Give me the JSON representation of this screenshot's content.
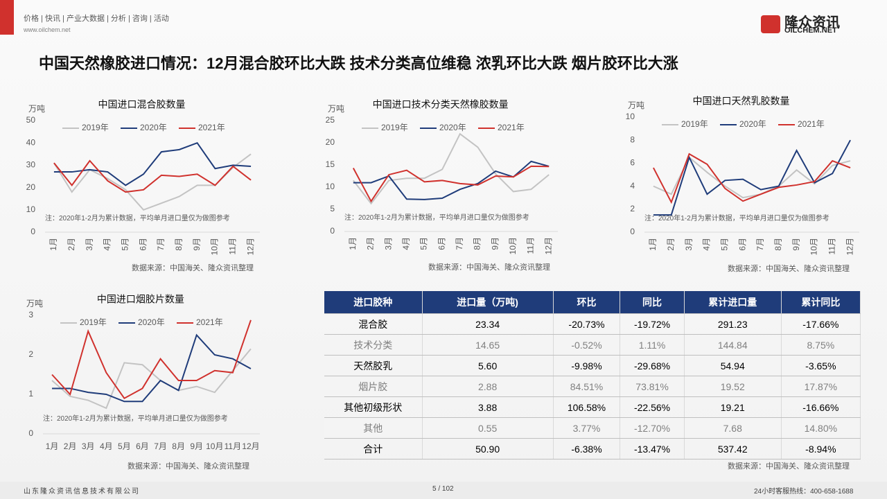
{
  "header": {
    "nav": "价格 | 快讯 | 产业大数据 | 分析 | 咨询 | 活动",
    "url": "www.oilchem.net",
    "logo_cn": "隆众资讯",
    "logo_en": "OILCHEM.NET",
    "title": "中国天然橡胶进口情况：12月混合胶环比大跌 技术分类高位维稳 浓乳环比大跌 烟片胶环比大涨"
  },
  "chart_data": [
    {
      "type": "line",
      "title": "中国进口混合胶数量",
      "y_label": "万吨",
      "categories": [
        "1月",
        "2月",
        "3月",
        "4月",
        "5月",
        "6月",
        "7月",
        "8月",
        "9月",
        "10月",
        "11月",
        "12月"
      ],
      "series": [
        {
          "name": "2019年",
          "color": "#c3c3c3",
          "values": [
            31,
            18,
            28,
            24,
            19,
            10,
            13,
            16,
            21,
            21,
            29,
            35
          ]
        },
        {
          "name": "2020年",
          "color": "#1f3c7a",
          "values": [
            27,
            27,
            28,
            27,
            21,
            26,
            36,
            37,
            40,
            28.5,
            30,
            29.5
          ]
        },
        {
          "name": "2021年",
          "color": "#d0312d",
          "values": [
            31,
            21,
            32,
            23,
            18,
            19,
            25.5,
            25,
            26,
            21,
            29.5,
            23.34
          ]
        }
      ],
      "ylim": [
        0,
        50
      ],
      "yticks": [
        0,
        10,
        20,
        30,
        40,
        50
      ],
      "legend": "top",
      "note": "注：2020年1-2月为累计数据，平均单月进口量仅为做图参考",
      "source": "数据来源：中国海关、隆众资讯整理"
    },
    {
      "type": "line",
      "title": "中国进口技术分类天然橡胶数量",
      "y_label": "万吨",
      "categories": [
        "1月",
        "2月",
        "3月",
        "4月",
        "5月",
        "6月",
        "7月",
        "8月",
        "9月",
        "10月",
        "11月",
        "12月"
      ],
      "series": [
        {
          "name": "2019年",
          "color": "#c3c3c3",
          "values": [
            11.5,
            6.3,
            11.5,
            12,
            12,
            14,
            22,
            19,
            13,
            9,
            9.5,
            12.8
          ]
        },
        {
          "name": "2020年",
          "color": "#1f3c7a",
          "values": [
            11,
            11,
            12.5,
            7.3,
            7.2,
            7.5,
            9.5,
            10.8,
            13.6,
            12.3,
            15.8,
            14.7
          ]
        },
        {
          "name": "2021年",
          "color": "#d0312d",
          "values": [
            14.3,
            6.8,
            12.8,
            13.8,
            11.2,
            11.5,
            10.8,
            10.5,
            12.5,
            12.3,
            14.7,
            14.65
          ]
        }
      ],
      "ylim": [
        0,
        25
      ],
      "yticks": [
        0,
        5,
        10,
        15,
        20,
        25
      ],
      "legend": "top",
      "note": "注：2020年1-2月为累计数据，平均单月进口量仅为做图参考",
      "source": "数据来源：中国海关、隆众资讯整理"
    },
    {
      "type": "line",
      "title": "中国进口天然乳胶数量",
      "y_label": "万吨",
      "categories": [
        "1月",
        "2月",
        "3月",
        "4月",
        "5月",
        "6月",
        "7月",
        "8月",
        "9月",
        "10月",
        "11月",
        "12月"
      ],
      "series": [
        {
          "name": "2019年",
          "color": "#c3c3c3",
          "values": [
            4,
            3.3,
            6.5,
            5.2,
            4,
            3,
            3.3,
            4,
            5.4,
            4.2,
            5.8,
            6.2
          ]
        },
        {
          "name": "2020年",
          "color": "#1f3c7a",
          "values": [
            1.5,
            1.5,
            6.5,
            3.3,
            4.5,
            4.6,
            3.7,
            4,
            7.1,
            4.3,
            5.1,
            8
          ]
        },
        {
          "name": "2021年",
          "color": "#d0312d",
          "values": [
            5.6,
            2.6,
            6.8,
            5.9,
            3.8,
            2.7,
            3.3,
            3.9,
            4.1,
            4.4,
            6.2,
            5.6
          ]
        }
      ],
      "ylim": [
        0,
        10
      ],
      "yticks": [
        0,
        2,
        4,
        6,
        8,
        10
      ],
      "legend": "top",
      "note": "注：2020年1-2月为累计数据，平均单月进口量仅为做图参考",
      "source": "数据来源：中国海关、隆众资讯整理"
    },
    {
      "type": "line",
      "title": "中国进口烟胶片数量",
      "y_label": "万吨",
      "categories": [
        "1月",
        "2月",
        "3月",
        "4月",
        "5月",
        "6月",
        "7月",
        "8月",
        "9月",
        "10月",
        "11月",
        "12月"
      ],
      "series": [
        {
          "name": "2019年",
          "color": "#c3c3c3",
          "values": [
            1.35,
            0.95,
            0.85,
            0.65,
            1.8,
            1.75,
            1.35,
            1.1,
            1.2,
            1.05,
            1.6,
            2.15
          ]
        },
        {
          "name": "2020年",
          "color": "#1f3c7a",
          "values": [
            1.15,
            1.15,
            1.05,
            1,
            0.82,
            0.82,
            1.35,
            1.1,
            2.5,
            2,
            1.9,
            1.65
          ]
        },
        {
          "name": "2021年",
          "color": "#d0312d",
          "values": [
            1.5,
            1,
            2.6,
            1.55,
            0.9,
            1.15,
            1.9,
            1.35,
            1.35,
            1.6,
            1.55,
            2.88
          ]
        }
      ],
      "ylim": [
        0,
        3
      ],
      "yticks": [
        0,
        1,
        2,
        3
      ],
      "legend": "top",
      "note": "注：2020年1-2月为累计数据，平均单月进口量仅为做图参考",
      "source": "数据来源：中国海关、隆众资讯整理"
    }
  ],
  "table": {
    "header": [
      "进口胶种",
      "进口量（万吨)",
      "环比",
      "同比",
      "累计进口量",
      "累计同比"
    ],
    "rows": [
      [
        "混合胶",
        "23.34",
        "-20.73%",
        "-19.72%",
        "291.23",
        "-17.66%"
      ],
      [
        "技术分类",
        "14.65",
        "-0.52%",
        "1.11%",
        "144.84",
        "8.75%"
      ],
      [
        "天然胶乳",
        "5.60",
        "-9.98%",
        "-29.68%",
        "54.94",
        "-3.65%"
      ],
      [
        "烟片胶",
        "2.88",
        "84.51%",
        "73.81%",
        "19.52",
        "17.87%"
      ],
      [
        "其他初级形状",
        "3.88",
        "106.58%",
        "-22.56%",
        "19.21",
        "-16.66%"
      ],
      [
        "其他",
        "0.55",
        "3.77%",
        "-12.70%",
        "7.68",
        "14.80%"
      ],
      [
        "合计",
        "50.90",
        "-6.38%",
        "-13.47%",
        "537.42",
        "-8.94%"
      ]
    ],
    "source": "数据来源：中国海关、隆众资讯整理"
  },
  "footer": {
    "company": "山东隆众资讯信息技术有限公司",
    "page": "5 / 102",
    "hotline": "24小时客服热线：400-658-1688"
  }
}
